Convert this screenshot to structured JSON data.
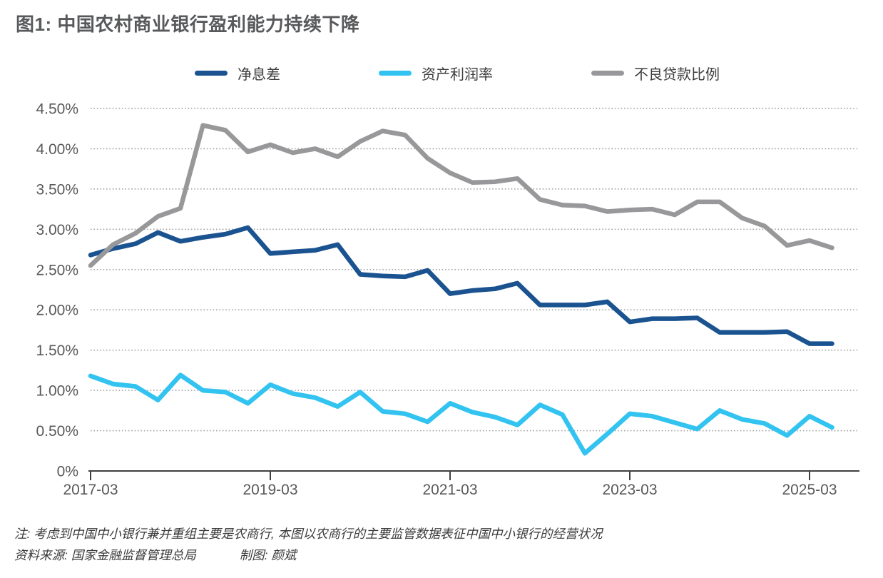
{
  "title": "图1: 中国农村商业银行盈利能力持续下降",
  "notes": {
    "note": "注: 考虑到中国中小银行兼并重组主要是农商行, 本图以农商行的主要监管数据表征中国中小银行的经营状况",
    "source": "资料来源: 国家金融监督管理总局",
    "credit": "制图: 颜斌"
  },
  "colors": {
    "title_text": "#58595b",
    "axis_text": "#595959",
    "axis_line": "#404040",
    "gridline": "#a3a3a3",
    "nim_line": "#1b5390",
    "roa_line": "#33c3f0",
    "npl_line": "#98989a"
  },
  "chart_data": {
    "type": "line",
    "title": "图1: 中国农村商业银行盈利能力持续下降",
    "x": [
      "2017-03",
      "2017-06",
      "2017-09",
      "2017-12",
      "2018-03",
      "2018-06",
      "2018-09",
      "2018-12",
      "2019-03",
      "2019-06",
      "2019-09",
      "2019-12",
      "2020-03",
      "2020-06",
      "2020-09",
      "2020-12",
      "2021-03",
      "2021-06",
      "2021-09",
      "2021-12",
      "2022-03",
      "2022-06",
      "2022-09",
      "2022-12",
      "2023-03",
      "2023-06",
      "2023-09",
      "2023-12",
      "2024-03",
      "2024-06",
      "2024-09",
      "2024-12",
      "2025-03",
      "2025-06"
    ],
    "x_tick_labels": [
      "2017-03",
      "2019-03",
      "2021-03",
      "2023-03",
      "2025-03"
    ],
    "x_tick_indices": [
      0,
      8,
      16,
      24,
      32
    ],
    "ylim": [
      0,
      4.5
    ],
    "y_ticks": [
      0,
      0.5,
      1.0,
      1.5,
      2.0,
      2.5,
      3.0,
      3.5,
      4.0,
      4.5
    ],
    "y_tick_labels": [
      "0%",
      "0.50%",
      "1.00%",
      "1.50%",
      "2.00%",
      "2.50%",
      "3.00%",
      "3.50%",
      "4.00%",
      "4.50%"
    ],
    "grid": "horizontal-dotted",
    "legend_position": "top",
    "unit": "%",
    "series": [
      {
        "key": "nim",
        "name": "净息差",
        "color": "#1b5390",
        "values": [
          2.68,
          2.76,
          2.82,
          2.96,
          2.85,
          2.9,
          2.94,
          3.02,
          2.7,
          2.72,
          2.74,
          2.81,
          2.44,
          2.42,
          2.41,
          2.49,
          2.2,
          2.24,
          2.26,
          2.33,
          2.06,
          2.06,
          2.06,
          2.1,
          1.85,
          1.89,
          1.89,
          1.9,
          1.72,
          1.72,
          1.72,
          1.73,
          1.58,
          1.58
        ]
      },
      {
        "key": "roa",
        "name": "资产利润率",
        "color": "#33c3f0",
        "values": [
          1.18,
          1.08,
          1.05,
          0.88,
          1.19,
          1.0,
          0.98,
          0.84,
          1.07,
          0.96,
          0.91,
          0.8,
          0.98,
          0.74,
          0.71,
          0.61,
          0.84,
          0.73,
          0.67,
          0.57,
          0.82,
          0.7,
          0.22,
          0.46,
          0.71,
          0.68,
          0.6,
          0.52,
          0.75,
          0.64,
          0.59,
          0.44,
          0.68,
          0.54
        ]
      },
      {
        "key": "npl",
        "name": "不良贷款比例",
        "color": "#98989a",
        "values": [
          2.55,
          2.81,
          2.95,
          3.16,
          3.26,
          4.29,
          4.23,
          3.96,
          4.05,
          3.95,
          4.0,
          3.9,
          4.09,
          4.22,
          4.17,
          3.88,
          3.7,
          3.58,
          3.59,
          3.63,
          3.37,
          3.3,
          3.29,
          3.22,
          3.24,
          3.25,
          3.18,
          3.34,
          3.34,
          3.14,
          3.04,
          2.8,
          2.86,
          2.77
        ]
      }
    ]
  }
}
